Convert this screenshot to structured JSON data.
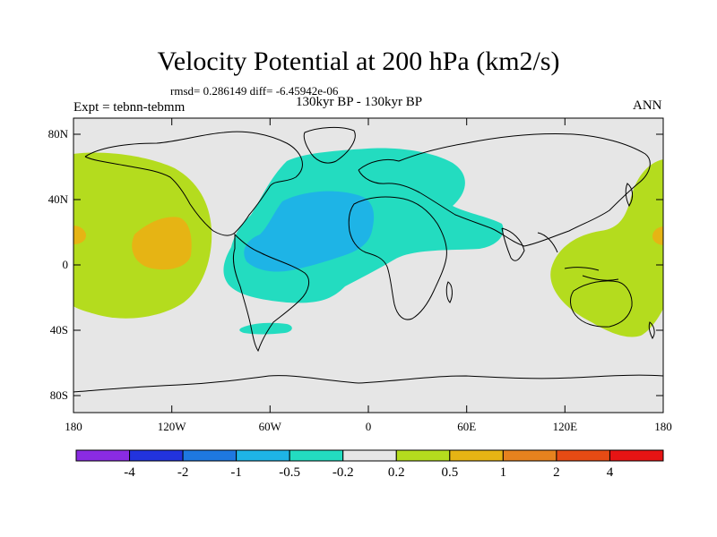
{
  "title": "Velocity Potential at 200 hPa (km2/s)",
  "stats": "rmsd= 0.286149  diff= -6.45942e-06",
  "experiment": "Expt = tebnn-tebmm",
  "period": "130kyr BP - 130kyr BP",
  "season": "ANN",
  "lat_ticks": [
    "80N",
    "40N",
    "0",
    "40S",
    "80S"
  ],
  "lon_ticks": [
    "180",
    "120W",
    "60W",
    "0",
    "60E",
    "120E",
    "180"
  ],
  "colorbar": {
    "colors": [
      "#8a2be2",
      "#2233dd",
      "#1e78e0",
      "#1eb4e6",
      "#23dcc0",
      "#e6e6e6",
      "#b4dc1e",
      "#e6b414",
      "#e6821e",
      "#e64b14",
      "#e61414"
    ],
    "labels": [
      "-4",
      "-2",
      "-1",
      "-0.5",
      "-0.2",
      "0.2",
      "0.5",
      "1",
      "2",
      "4"
    ]
  },
  "colors": {
    "land_bg": "#e6e6e6",
    "pos_fill": "#b4dc1e",
    "pos_high": "#e6b414",
    "neg_fill": "#23dcc0",
    "neg_deep": "#1eb4e6"
  }
}
